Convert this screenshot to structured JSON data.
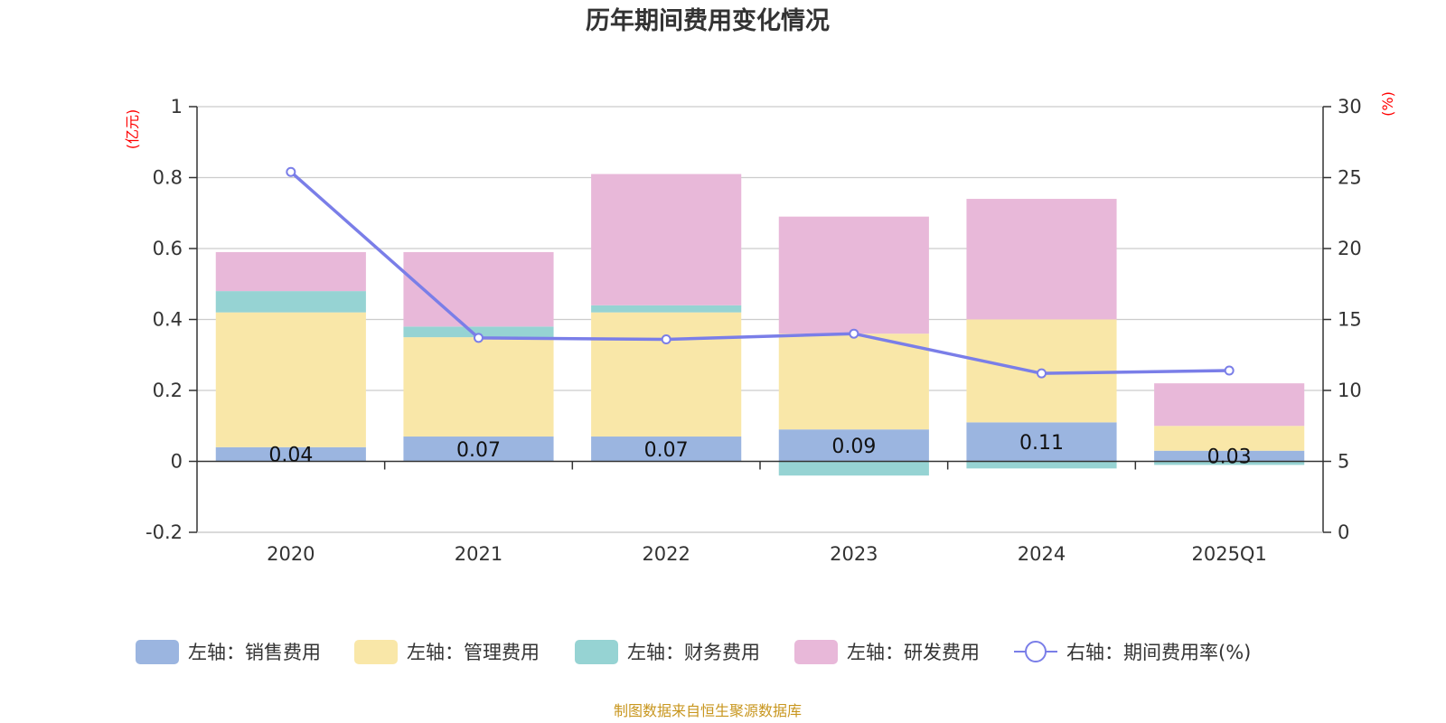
{
  "chart_data": {
    "type": "bar",
    "title": "历年期间费用变化情况",
    "categories": [
      "2020",
      "2021",
      "2022",
      "2023",
      "2024",
      "2025Q1"
    ],
    "left_axis": {
      "unit": "(亿元)",
      "ylim": [
        -0.2,
        1
      ],
      "ticks": [
        "-0.2",
        "0",
        "0.2",
        "0.4",
        "0.6",
        "0.8",
        "1"
      ]
    },
    "right_axis": {
      "unit": "(%)",
      "ylim": [
        0,
        30
      ],
      "ticks": [
        "0",
        "5",
        "10",
        "15",
        "20",
        "25",
        "30"
      ]
    },
    "grid": true,
    "stacked": true,
    "series": [
      {
        "name": "左轴：销售费用",
        "type": "bar",
        "axis": "left",
        "color": "#9bb5e0",
        "values": [
          0.04,
          0.07,
          0.07,
          0.09,
          0.11,
          0.03
        ],
        "labels": [
          "0.04",
          "0.07",
          "0.07",
          "0.09",
          "0.11",
          "0.03"
        ]
      },
      {
        "name": "左轴：管理费用",
        "type": "bar",
        "axis": "left",
        "color": "#f9e7a8",
        "values": [
          0.38,
          0.28,
          0.35,
          0.27,
          0.29,
          0.07
        ]
      },
      {
        "name": "左轴：财务费用",
        "type": "bar",
        "axis": "left",
        "color": "#96d3d3",
        "values": [
          0.06,
          0.03,
          0.02,
          -0.04,
          -0.02,
          -0.01
        ]
      },
      {
        "name": "左轴：研发费用",
        "type": "bar",
        "axis": "left",
        "color": "#e8b8d9",
        "values": [
          0.11,
          0.21,
          0.37,
          0.33,
          0.34,
          0.12
        ]
      },
      {
        "name": "右轴：期间费用率(%)",
        "type": "line",
        "axis": "right",
        "color": "#7a7ee8",
        "values": [
          25.4,
          13.7,
          13.6,
          14.0,
          11.2,
          11.4
        ]
      }
    ],
    "legend_position": "bottom",
    "source": "制图数据来自恒生聚源数据库"
  }
}
